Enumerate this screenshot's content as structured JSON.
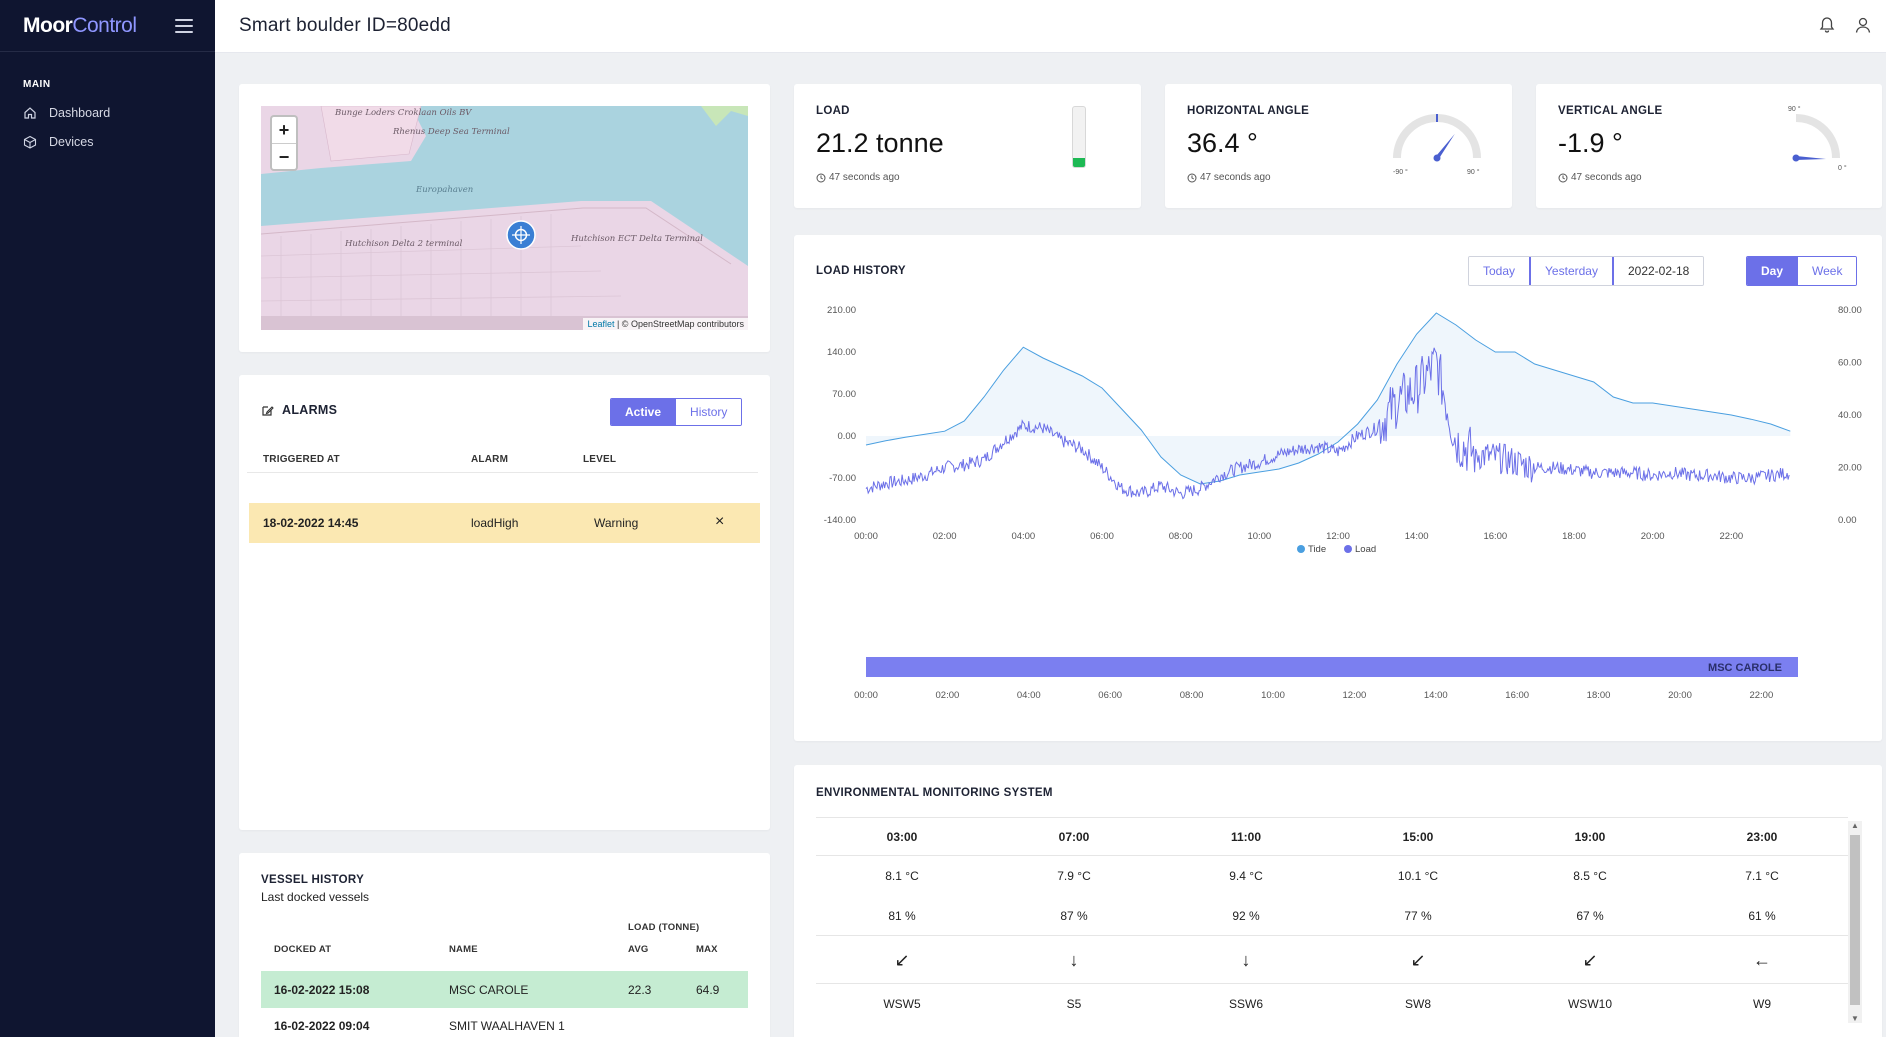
{
  "brand": {
    "part1": "Moor",
    "part2": "Control"
  },
  "sidebar": {
    "section": "MAIN",
    "items": [
      {
        "label": "Dashboard",
        "icon": "home-icon"
      },
      {
        "label": "Devices",
        "icon": "cube-icon"
      }
    ]
  },
  "header": {
    "title": "Smart boulder ID=80edd"
  },
  "map": {
    "labels": [
      "Bunge Loders Croklaan Oils BV",
      "Rhenus Deep Sea Terminal",
      "Europahaven",
      "Hutchison Delta 2 terminal",
      "Hutchison ECT Delta Terminal"
    ],
    "zoom_in": "+",
    "zoom_out": "−",
    "attribution_link": "Leaflet",
    "attribution_text": " | © OpenStreetMap contributors"
  },
  "metrics": {
    "load": {
      "label": "LOAD",
      "value": "21.2 tonne",
      "time": "47 seconds ago",
      "fill_fraction": 0.15
    },
    "horizontal": {
      "label": "HORIZONTAL ANGLE",
      "value": "36.4 °",
      "time": "47 seconds ago",
      "min_label": "-90 °",
      "max_label": "90 °",
      "angle_deg": 36.4
    },
    "vertical": {
      "label": "VERTICAL ANGLE",
      "value": "-1.9 °",
      "time": "47 seconds ago",
      "top_label": "90 °",
      "right_label": "0 °",
      "angle_deg": -1.9
    }
  },
  "alarms": {
    "title": "ALARMS",
    "tabs": [
      "Active",
      "History"
    ],
    "columns": [
      "TRIGGERED AT",
      "ALARM",
      "LEVEL"
    ],
    "rows": [
      {
        "triggered_at": "18-02-2022 14:45",
        "alarm": "loadHigh",
        "level": "Warning",
        "dismiss": "×"
      }
    ]
  },
  "vessels": {
    "title": "VESSEL HISTORY",
    "subtitle": "Last docked vessels",
    "group_header": "LOAD (TONNE)",
    "columns": [
      "DOCKED AT",
      "NAME",
      "AVG",
      "MAX"
    ],
    "rows": [
      {
        "docked_at": "16-02-2022 15:08",
        "name": "MSC CAROLE",
        "avg": "22.3",
        "max": "64.9"
      },
      {
        "docked_at": "16-02-2022 09:04",
        "name": "SMIT WAALHAVEN 1",
        "avg": "",
        "max": ""
      }
    ]
  },
  "load_history": {
    "title": "LOAD HISTORY",
    "range_buttons": [
      "Today",
      "Yesterday"
    ],
    "date": "2022-02-18",
    "period_buttons": [
      "Day",
      "Week"
    ],
    "vessel_bar_label": "MSC CAROLE"
  },
  "chart_data": {
    "type": "line",
    "x_ticks": [
      "00:00",
      "02:00",
      "04:00",
      "06:00",
      "08:00",
      "10:00",
      "12:00",
      "14:00",
      "16:00",
      "18:00",
      "20:00",
      "22:00"
    ],
    "y_left_ticks": [
      "210.00",
      "140.00",
      "70.00",
      "0.00",
      "-70.00",
      "-140.00"
    ],
    "y_right_ticks": [
      "80.00",
      "60.00",
      "40.00",
      "20.00",
      "0.00"
    ],
    "ylim_left": [
      -140,
      210
    ],
    "ylim_right": [
      0,
      80
    ],
    "xlim_hours": [
      0,
      24
    ],
    "legend": [
      "Tide",
      "Load"
    ],
    "legend_placement": "bottom",
    "series": [
      {
        "name": "Tide",
        "axis": "left",
        "color": "#4a9fe0",
        "x": [
          0,
          0.5,
          1,
          1.5,
          2,
          2.5,
          3,
          3.5,
          4,
          4.5,
          5,
          5.5,
          6,
          6.5,
          7,
          7.5,
          8,
          8.5,
          9,
          9.5,
          10,
          10.5,
          11,
          11.5,
          12,
          12.5,
          13,
          13.5,
          14,
          14.5,
          15,
          15.5,
          16,
          16.5,
          17,
          17.5,
          18,
          18.5,
          19,
          19.5,
          20,
          20.5,
          21,
          21.5,
          22,
          22.5,
          23,
          23.5
        ],
        "y": [
          -15,
          -8,
          -2,
          3,
          8,
          25,
          65,
          110,
          148,
          130,
          115,
          100,
          80,
          45,
          10,
          -35,
          -65,
          -80,
          -75,
          -65,
          -60,
          -55,
          -45,
          -30,
          -10,
          20,
          60,
          120,
          170,
          205,
          185,
          160,
          140,
          140,
          120,
          110,
          100,
          90,
          65,
          55,
          55,
          50,
          45,
          40,
          35,
          28,
          20,
          8
        ]
      },
      {
        "name": "Load",
        "axis": "right",
        "color": "#6c70e8",
        "x": [
          0,
          0.5,
          1,
          1.5,
          2,
          2.5,
          3,
          3.5,
          4,
          4.5,
          5,
          5.5,
          6,
          6.5,
          7,
          7.5,
          8,
          8.5,
          9,
          9.5,
          10,
          10.5,
          11,
          11.5,
          12,
          12.5,
          13,
          13.5,
          14,
          14.5,
          15,
          15.5,
          16,
          16.5,
          17,
          17.5,
          18,
          18.5,
          19,
          19.5,
          20,
          20.5,
          21,
          21.5,
          22,
          22.5,
          23,
          23.5
        ],
        "y": [
          12,
          14,
          15,
          17,
          20,
          21,
          23,
          30,
          36,
          35,
          30,
          27,
          20,
          12,
          10,
          13,
          10,
          12,
          17,
          20,
          22,
          25,
          27,
          28,
          26,
          32,
          35,
          45,
          50,
          60,
          30,
          25,
          24,
          22,
          20,
          20,
          19,
          18,
          18,
          18,
          17,
          18,
          17,
          17,
          16,
          16,
          17,
          18
        ]
      }
    ],
    "vessel_timeline": {
      "x_ticks": [
        "00:00",
        "02:00",
        "04:00",
        "06:00",
        "08:00",
        "10:00",
        "12:00",
        "14:00",
        "16:00",
        "18:00",
        "20:00",
        "22:00"
      ]
    }
  },
  "environment": {
    "title": "ENVIRONMENTAL MONITORING SYSTEM",
    "times": [
      "03:00",
      "07:00",
      "11:00",
      "15:00",
      "19:00",
      "23:00"
    ],
    "temps": [
      "8.1 °C",
      "7.9 °C",
      "9.4 °C",
      "10.1 °C",
      "8.5 °C",
      "7.1 °C"
    ],
    "humidity": [
      "81 %",
      "87 %",
      "92 %",
      "77 %",
      "67 %",
      "61 %"
    ],
    "wind_arrows": [
      "↙",
      "↓",
      "↓",
      "↙",
      "↙",
      "←"
    ],
    "wind_rotation_deg": [
      45,
      0,
      15,
      45,
      60,
      90
    ],
    "wind": [
      "WSW5",
      "S5",
      "SSW6",
      "SW8",
      "WSW10",
      "W9"
    ]
  }
}
